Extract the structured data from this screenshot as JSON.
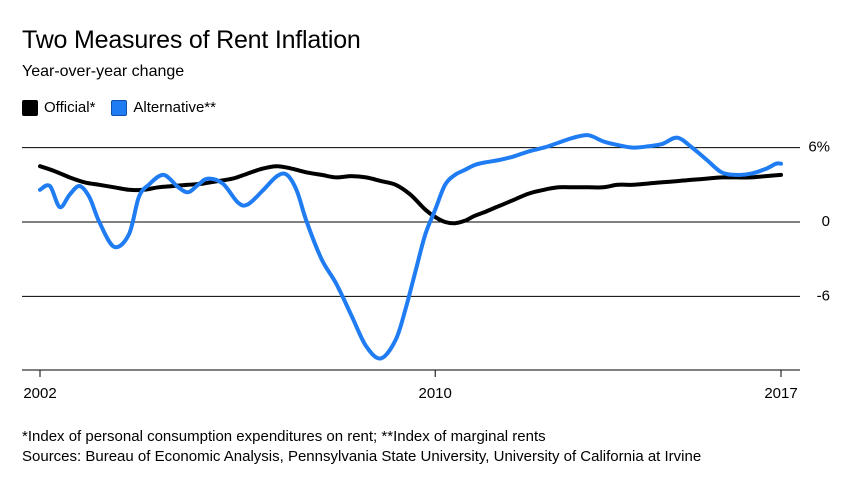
{
  "chart_data": {
    "type": "line",
    "title": "Two Measures of Rent Inflation",
    "subtitle": "Year-over-year change",
    "xlabel": "",
    "ylabel": "",
    "xlim": [
      2002,
      2017
    ],
    "ylim": [
      -11.5,
      8
    ],
    "x_ticks": [
      {
        "value": 2002,
        "label": "2002"
      },
      {
        "value": 2010,
        "label": "2010"
      },
      {
        "value": 2017,
        "label": "2017"
      }
    ],
    "y_ticks": [
      {
        "value": 6,
        "label": "6%"
      },
      {
        "value": 0,
        "label": "0"
      },
      {
        "value": -6,
        "label": "-6"
      }
    ],
    "grid": "horizontal",
    "legend_position": "top-left",
    "series": [
      {
        "name": "Official*",
        "color": "#000000",
        "x": [
          2002.0,
          2002.3,
          2002.6,
          2002.9,
          2003.2,
          2003.5,
          2003.8,
          2004.1,
          2004.4,
          2004.7,
          2005.0,
          2005.3,
          2005.6,
          2005.9,
          2006.2,
          2006.5,
          2006.8,
          2007.1,
          2007.4,
          2007.7,
          2008.0,
          2008.3,
          2008.6,
          2008.9,
          2009.2,
          2009.5,
          2009.8,
          2010.0,
          2010.2,
          2010.4,
          2010.6,
          2010.8,
          2011.0,
          2011.3,
          2011.6,
          2011.9,
          2012.2,
          2012.5,
          2012.8,
          2013.1,
          2013.4,
          2013.7,
          2014.0,
          2014.3,
          2014.6,
          2014.9,
          2015.2,
          2015.5,
          2015.8,
          2016.1,
          2016.4,
          2016.7,
          2017.0
        ],
        "values": [
          4.5,
          4.1,
          3.6,
          3.2,
          3.0,
          2.8,
          2.6,
          2.6,
          2.8,
          2.9,
          3.0,
          3.1,
          3.3,
          3.5,
          3.9,
          4.3,
          4.5,
          4.3,
          4.0,
          3.8,
          3.6,
          3.7,
          3.6,
          3.3,
          3.0,
          2.2,
          1.0,
          0.4,
          0.0,
          -0.1,
          0.1,
          0.5,
          0.8,
          1.3,
          1.8,
          2.3,
          2.6,
          2.8,
          2.8,
          2.8,
          2.8,
          3.0,
          3.0,
          3.1,
          3.2,
          3.3,
          3.4,
          3.5,
          3.6,
          3.6,
          3.6,
          3.7,
          3.8
        ]
      },
      {
        "name": "Alternative**",
        "color": "#1f7cf2",
        "x": [
          2002.0,
          2002.2,
          2002.4,
          2002.6,
          2002.8,
          2003.0,
          2003.2,
          2003.5,
          2003.8,
          2004.0,
          2004.2,
          2004.5,
          2004.8,
          2005.0,
          2005.2,
          2005.4,
          2005.7,
          2006.0,
          2006.2,
          2006.5,
          2006.8,
          2007.0,
          2007.2,
          2007.4,
          2007.7,
          2008.0,
          2008.3,
          2008.6,
          2008.9,
          2009.2,
          2009.4,
          2009.6,
          2009.8,
          2010.0,
          2010.2,
          2010.4,
          2010.6,
          2010.8,
          2011.0,
          2011.3,
          2011.6,
          2011.9,
          2012.2,
          2012.5,
          2012.8,
          2013.1,
          2013.4,
          2013.7,
          2014.0,
          2014.3,
          2014.6,
          2014.9,
          2015.2,
          2015.5,
          2015.8,
          2016.1,
          2016.4,
          2016.7,
          2016.9,
          2017.0
        ],
        "values": [
          2.6,
          2.9,
          1.2,
          2.2,
          2.9,
          2.0,
          0.0,
          -2.0,
          -1.0,
          2.0,
          3.0,
          3.8,
          2.8,
          2.4,
          3.0,
          3.5,
          3.1,
          1.6,
          1.4,
          2.5,
          3.7,
          3.8,
          2.5,
          0.0,
          -3.0,
          -5.0,
          -7.5,
          -10.0,
          -11.0,
          -9.5,
          -7.0,
          -4.0,
          -1.0,
          1.0,
          3.0,
          3.8,
          4.2,
          4.6,
          4.8,
          5.0,
          5.3,
          5.7,
          6.0,
          6.4,
          6.8,
          7.0,
          6.5,
          6.2,
          6.0,
          6.1,
          6.3,
          6.8,
          6.0,
          5.0,
          4.0,
          3.8,
          3.9,
          4.3,
          4.7,
          4.7
        ]
      }
    ]
  },
  "footnotes": {
    "line1": "*Index of personal consumption expenditures on rent; **Index of marginal rents",
    "line2": "Sources: Bureau of Economic Analysis, Pennsylvania State University, University of California at Irvine"
  }
}
